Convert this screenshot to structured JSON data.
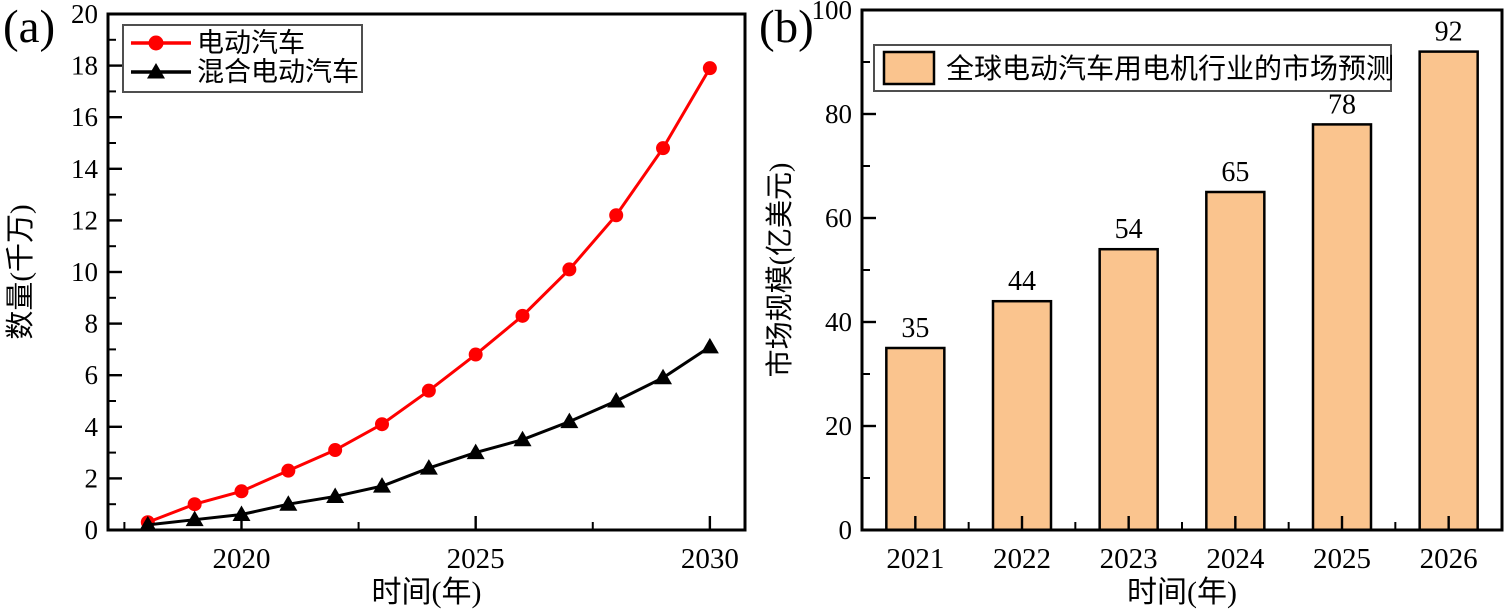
{
  "figure": {
    "background": "#ffffff",
    "accent_red": "#ff0000",
    "accent_black": "#000000",
    "bar_color": "#fac48e"
  },
  "chart_data": [
    {
      "type": "line",
      "panel_label": "(a)",
      "xlabel": "时间(年)",
      "ylabel": "数量(千万)",
      "x": [
        2018,
        2019,
        2020,
        2021,
        2022,
        2023,
        2024,
        2025,
        2026,
        2027,
        2028,
        2029,
        2030
      ],
      "xlim": [
        2017.15,
        2030.75
      ],
      "ylim": [
        0,
        20
      ],
      "y_major_step": 2,
      "y_minor_step": 1,
      "x_major_ticks": [
        2020,
        2025,
        2030
      ],
      "x_minor_ticks": [
        2017.5,
        2022.5,
        2027.5
      ],
      "grid": false,
      "legend_position": "top-left",
      "series": [
        {
          "name": "电动汽车",
          "color": "#ff0000",
          "marker": "circle",
          "values": [
            0.3,
            1.0,
            1.5,
            2.3,
            3.1,
            4.1,
            5.4,
            6.8,
            8.3,
            10.1,
            12.2,
            14.8,
            17.9
          ]
        },
        {
          "name": "混合电动汽车",
          "color": "#000000",
          "marker": "triangle",
          "values": [
            0.2,
            0.4,
            0.6,
            1.0,
            1.3,
            1.7,
            2.4,
            3.0,
            3.5,
            4.2,
            5.0,
            5.9,
            7.1
          ]
        }
      ]
    },
    {
      "type": "bar",
      "panel_label": "(b)",
      "xlabel": "时间(年)",
      "ylabel": "市场规模(亿美元)",
      "categories": [
        "2021",
        "2022",
        "2023",
        "2024",
        "2025",
        "2026"
      ],
      "values": [
        35,
        44,
        54,
        65,
        78,
        92
      ],
      "ylim": [
        0,
        100
      ],
      "y_major_step": 20,
      "y_minor_step": 10,
      "grid": false,
      "bar_fill": "#fac48e",
      "bar_stroke": "#000000",
      "legend_label": "全球电动汽车用电机行业的市场预测",
      "legend_position": "top-left"
    }
  ]
}
